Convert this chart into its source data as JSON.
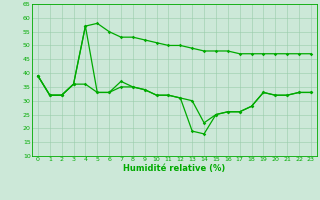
{
  "xlabel": "Humidité relative (%)",
  "background_color": "#cce8d8",
  "grid_color": "#99ccaa",
  "line_color": "#00aa00",
  "xlim": [
    -0.5,
    23.5
  ],
  "ylim": [
    10,
    65
  ],
  "yticks": [
    10,
    15,
    20,
    25,
    30,
    35,
    40,
    45,
    50,
    55,
    60,
    65
  ],
  "xticks": [
    0,
    1,
    2,
    3,
    4,
    5,
    6,
    7,
    8,
    9,
    10,
    11,
    12,
    13,
    14,
    15,
    16,
    17,
    18,
    19,
    20,
    21,
    22,
    23
  ],
  "series1_x": [
    0,
    1,
    2,
    3,
    4,
    5,
    6,
    7,
    8,
    9,
    10,
    11,
    12,
    13,
    14,
    15,
    16,
    17,
    18,
    19,
    20,
    21,
    22,
    23
  ],
  "series1_y": [
    39,
    32,
    32,
    36,
    57,
    58,
    55,
    53,
    53,
    52,
    51,
    50,
    50,
    49,
    48,
    48,
    48,
    47,
    47,
    47,
    47,
    47,
    47,
    47
  ],
  "series2_x": [
    0,
    1,
    2,
    3,
    4,
    5,
    6,
    7,
    8,
    9,
    10,
    11,
    12,
    13,
    14,
    15,
    16,
    17,
    18,
    19,
    20,
    21,
    22,
    23
  ],
  "series2_y": [
    39,
    32,
    32,
    36,
    36,
    33,
    33,
    35,
    35,
    34,
    32,
    32,
    31,
    30,
    22,
    25,
    26,
    26,
    28,
    33,
    32,
    32,
    33,
    33
  ],
  "series3_x": [
    0,
    1,
    2,
    3,
    4,
    5,
    6,
    7,
    8,
    9,
    10,
    11,
    12,
    13,
    14,
    15,
    16,
    17,
    18,
    19,
    20,
    21,
    22,
    23
  ],
  "series3_y": [
    39,
    32,
    32,
    36,
    57,
    33,
    33,
    37,
    35,
    34,
    32,
    32,
    31,
    19,
    18,
    25,
    26,
    26,
    28,
    33,
    32,
    32,
    33,
    33
  ],
  "marker_size": 1.8,
  "line_width": 0.9,
  "tick_fontsize": 4.5,
  "xlabel_fontsize": 6.0
}
